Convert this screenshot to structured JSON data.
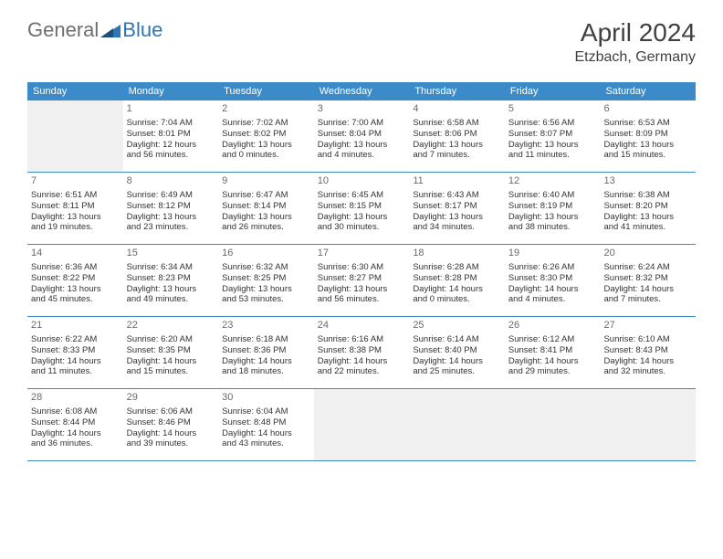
{
  "logo": {
    "general": "General",
    "blue": "Blue"
  },
  "title": "April 2024",
  "location": "Etzbach, Germany",
  "dayHeaders": [
    "Sunday",
    "Monday",
    "Tuesday",
    "Wednesday",
    "Thursday",
    "Friday",
    "Saturday"
  ],
  "colors": {
    "headerBg": "#3b8bc8",
    "headerText": "#ffffff",
    "logoGray": "#6d6e71",
    "logoBlue": "#2e75b6",
    "emptyBg": "#f0f0f0",
    "text": "#333333",
    "dayNum": "#6a6a6a",
    "rowBorder": "#3b8bc8"
  },
  "weeks": [
    [
      {
        "empty": true
      },
      {
        "num": "1",
        "sunrise": "Sunrise: 7:04 AM",
        "sunset": "Sunset: 8:01 PM",
        "daylight1": "Daylight: 12 hours",
        "daylight2": "and 56 minutes."
      },
      {
        "num": "2",
        "sunrise": "Sunrise: 7:02 AM",
        "sunset": "Sunset: 8:02 PM",
        "daylight1": "Daylight: 13 hours",
        "daylight2": "and 0 minutes."
      },
      {
        "num": "3",
        "sunrise": "Sunrise: 7:00 AM",
        "sunset": "Sunset: 8:04 PM",
        "daylight1": "Daylight: 13 hours",
        "daylight2": "and 4 minutes."
      },
      {
        "num": "4",
        "sunrise": "Sunrise: 6:58 AM",
        "sunset": "Sunset: 8:06 PM",
        "daylight1": "Daylight: 13 hours",
        "daylight2": "and 7 minutes."
      },
      {
        "num": "5",
        "sunrise": "Sunrise: 6:56 AM",
        "sunset": "Sunset: 8:07 PM",
        "daylight1": "Daylight: 13 hours",
        "daylight2": "and 11 minutes."
      },
      {
        "num": "6",
        "sunrise": "Sunrise: 6:53 AM",
        "sunset": "Sunset: 8:09 PM",
        "daylight1": "Daylight: 13 hours",
        "daylight2": "and 15 minutes."
      }
    ],
    [
      {
        "num": "7",
        "sunrise": "Sunrise: 6:51 AM",
        "sunset": "Sunset: 8:11 PM",
        "daylight1": "Daylight: 13 hours",
        "daylight2": "and 19 minutes."
      },
      {
        "num": "8",
        "sunrise": "Sunrise: 6:49 AM",
        "sunset": "Sunset: 8:12 PM",
        "daylight1": "Daylight: 13 hours",
        "daylight2": "and 23 minutes."
      },
      {
        "num": "9",
        "sunrise": "Sunrise: 6:47 AM",
        "sunset": "Sunset: 8:14 PM",
        "daylight1": "Daylight: 13 hours",
        "daylight2": "and 26 minutes."
      },
      {
        "num": "10",
        "sunrise": "Sunrise: 6:45 AM",
        "sunset": "Sunset: 8:15 PM",
        "daylight1": "Daylight: 13 hours",
        "daylight2": "and 30 minutes."
      },
      {
        "num": "11",
        "sunrise": "Sunrise: 6:43 AM",
        "sunset": "Sunset: 8:17 PM",
        "daylight1": "Daylight: 13 hours",
        "daylight2": "and 34 minutes."
      },
      {
        "num": "12",
        "sunrise": "Sunrise: 6:40 AM",
        "sunset": "Sunset: 8:19 PM",
        "daylight1": "Daylight: 13 hours",
        "daylight2": "and 38 minutes."
      },
      {
        "num": "13",
        "sunrise": "Sunrise: 6:38 AM",
        "sunset": "Sunset: 8:20 PM",
        "daylight1": "Daylight: 13 hours",
        "daylight2": "and 41 minutes."
      }
    ],
    [
      {
        "num": "14",
        "sunrise": "Sunrise: 6:36 AM",
        "sunset": "Sunset: 8:22 PM",
        "daylight1": "Daylight: 13 hours",
        "daylight2": "and 45 minutes."
      },
      {
        "num": "15",
        "sunrise": "Sunrise: 6:34 AM",
        "sunset": "Sunset: 8:23 PM",
        "daylight1": "Daylight: 13 hours",
        "daylight2": "and 49 minutes."
      },
      {
        "num": "16",
        "sunrise": "Sunrise: 6:32 AM",
        "sunset": "Sunset: 8:25 PM",
        "daylight1": "Daylight: 13 hours",
        "daylight2": "and 53 minutes."
      },
      {
        "num": "17",
        "sunrise": "Sunrise: 6:30 AM",
        "sunset": "Sunset: 8:27 PM",
        "daylight1": "Daylight: 13 hours",
        "daylight2": "and 56 minutes."
      },
      {
        "num": "18",
        "sunrise": "Sunrise: 6:28 AM",
        "sunset": "Sunset: 8:28 PM",
        "daylight1": "Daylight: 14 hours",
        "daylight2": "and 0 minutes."
      },
      {
        "num": "19",
        "sunrise": "Sunrise: 6:26 AM",
        "sunset": "Sunset: 8:30 PM",
        "daylight1": "Daylight: 14 hours",
        "daylight2": "and 4 minutes."
      },
      {
        "num": "20",
        "sunrise": "Sunrise: 6:24 AM",
        "sunset": "Sunset: 8:32 PM",
        "daylight1": "Daylight: 14 hours",
        "daylight2": "and 7 minutes."
      }
    ],
    [
      {
        "num": "21",
        "sunrise": "Sunrise: 6:22 AM",
        "sunset": "Sunset: 8:33 PM",
        "daylight1": "Daylight: 14 hours",
        "daylight2": "and 11 minutes."
      },
      {
        "num": "22",
        "sunrise": "Sunrise: 6:20 AM",
        "sunset": "Sunset: 8:35 PM",
        "daylight1": "Daylight: 14 hours",
        "daylight2": "and 15 minutes."
      },
      {
        "num": "23",
        "sunrise": "Sunrise: 6:18 AM",
        "sunset": "Sunset: 8:36 PM",
        "daylight1": "Daylight: 14 hours",
        "daylight2": "and 18 minutes."
      },
      {
        "num": "24",
        "sunrise": "Sunrise: 6:16 AM",
        "sunset": "Sunset: 8:38 PM",
        "daylight1": "Daylight: 14 hours",
        "daylight2": "and 22 minutes."
      },
      {
        "num": "25",
        "sunrise": "Sunrise: 6:14 AM",
        "sunset": "Sunset: 8:40 PM",
        "daylight1": "Daylight: 14 hours",
        "daylight2": "and 25 minutes."
      },
      {
        "num": "26",
        "sunrise": "Sunrise: 6:12 AM",
        "sunset": "Sunset: 8:41 PM",
        "daylight1": "Daylight: 14 hours",
        "daylight2": "and 29 minutes."
      },
      {
        "num": "27",
        "sunrise": "Sunrise: 6:10 AM",
        "sunset": "Sunset: 8:43 PM",
        "daylight1": "Daylight: 14 hours",
        "daylight2": "and 32 minutes."
      }
    ],
    [
      {
        "num": "28",
        "sunrise": "Sunrise: 6:08 AM",
        "sunset": "Sunset: 8:44 PM",
        "daylight1": "Daylight: 14 hours",
        "daylight2": "and 36 minutes."
      },
      {
        "num": "29",
        "sunrise": "Sunrise: 6:06 AM",
        "sunset": "Sunset: 8:46 PM",
        "daylight1": "Daylight: 14 hours",
        "daylight2": "and 39 minutes."
      },
      {
        "num": "30",
        "sunrise": "Sunrise: 6:04 AM",
        "sunset": "Sunset: 8:48 PM",
        "daylight1": "Daylight: 14 hours",
        "daylight2": "and 43 minutes."
      },
      {
        "empty": true
      },
      {
        "empty": true
      },
      {
        "empty": true
      },
      {
        "empty": true
      }
    ]
  ]
}
